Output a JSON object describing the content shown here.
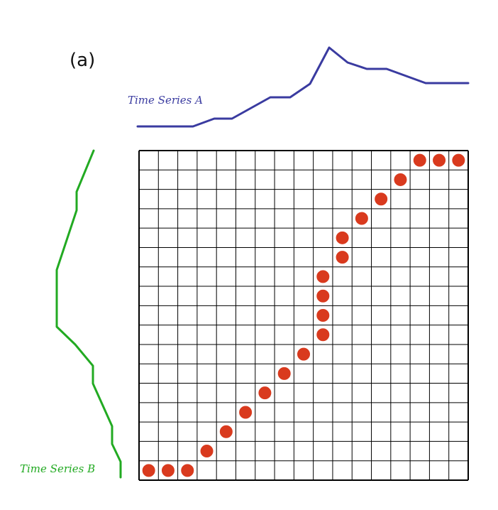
{
  "figure": {
    "panel_label": "(a)",
    "series_a_label": "Time Series A",
    "series_b_label": "Time Series B",
    "colors": {
      "series_a": "#3a3ba0",
      "series_b": "#22aa22",
      "path_dot": "#d93a1e",
      "grid": "#000000"
    },
    "grid_size": 17,
    "warping_path": [
      [
        0,
        0
      ],
      [
        1,
        0
      ],
      [
        2,
        0
      ],
      [
        3,
        1
      ],
      [
        4,
        2
      ],
      [
        5,
        3
      ],
      [
        6,
        4
      ],
      [
        7,
        5
      ],
      [
        8,
        6
      ],
      [
        9,
        7
      ],
      [
        9,
        8
      ],
      [
        9,
        9
      ],
      [
        9,
        10
      ],
      [
        10,
        11
      ],
      [
        10,
        12
      ],
      [
        11,
        13
      ],
      [
        12,
        14
      ],
      [
        13,
        15
      ],
      [
        14,
        16
      ],
      [
        15,
        16
      ],
      [
        16,
        16
      ]
    ]
  }
}
